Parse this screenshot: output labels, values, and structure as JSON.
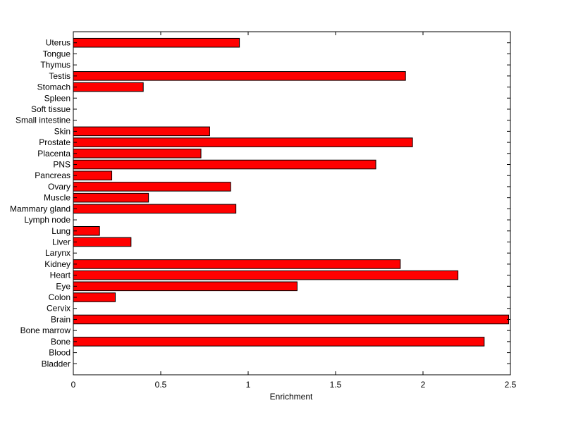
{
  "chart_data": {
    "type": "bar",
    "orientation": "horizontal",
    "title": "",
    "xlabel": "Enrichment",
    "ylabel": "",
    "xlim": [
      0,
      2.5
    ],
    "xticks": [
      "0",
      "0.5",
      "1",
      "1.5",
      "2",
      "2.5"
    ],
    "grid": false,
    "categories": [
      "Bladder",
      "Blood",
      "Bone",
      "Bone marrow",
      "Brain",
      "Cervix",
      "Colon",
      "Eye",
      "Heart",
      "Kidney",
      "Larynx",
      "Liver",
      "Lung",
      "Lymph node",
      "Mammary gland",
      "Muscle",
      "Ovary",
      "Pancreas",
      "PNS",
      "Placenta",
      "Prostate",
      "Skin",
      "Small intestine",
      "Soft tissue",
      "Spleen",
      "Stomach",
      "Testis",
      "Thymus",
      "Tongue",
      "Uterus"
    ],
    "values": [
      0,
      0,
      2.35,
      0,
      2.49,
      0,
      0.24,
      1.28,
      2.2,
      1.87,
      0,
      0.33,
      0.15,
      0,
      0.93,
      0.43,
      0.9,
      0.22,
      1.73,
      0.73,
      1.94,
      0.78,
      0,
      0,
      0,
      0.4,
      1.9,
      0,
      0,
      0.95
    ],
    "bar_color": "#ff0000"
  }
}
